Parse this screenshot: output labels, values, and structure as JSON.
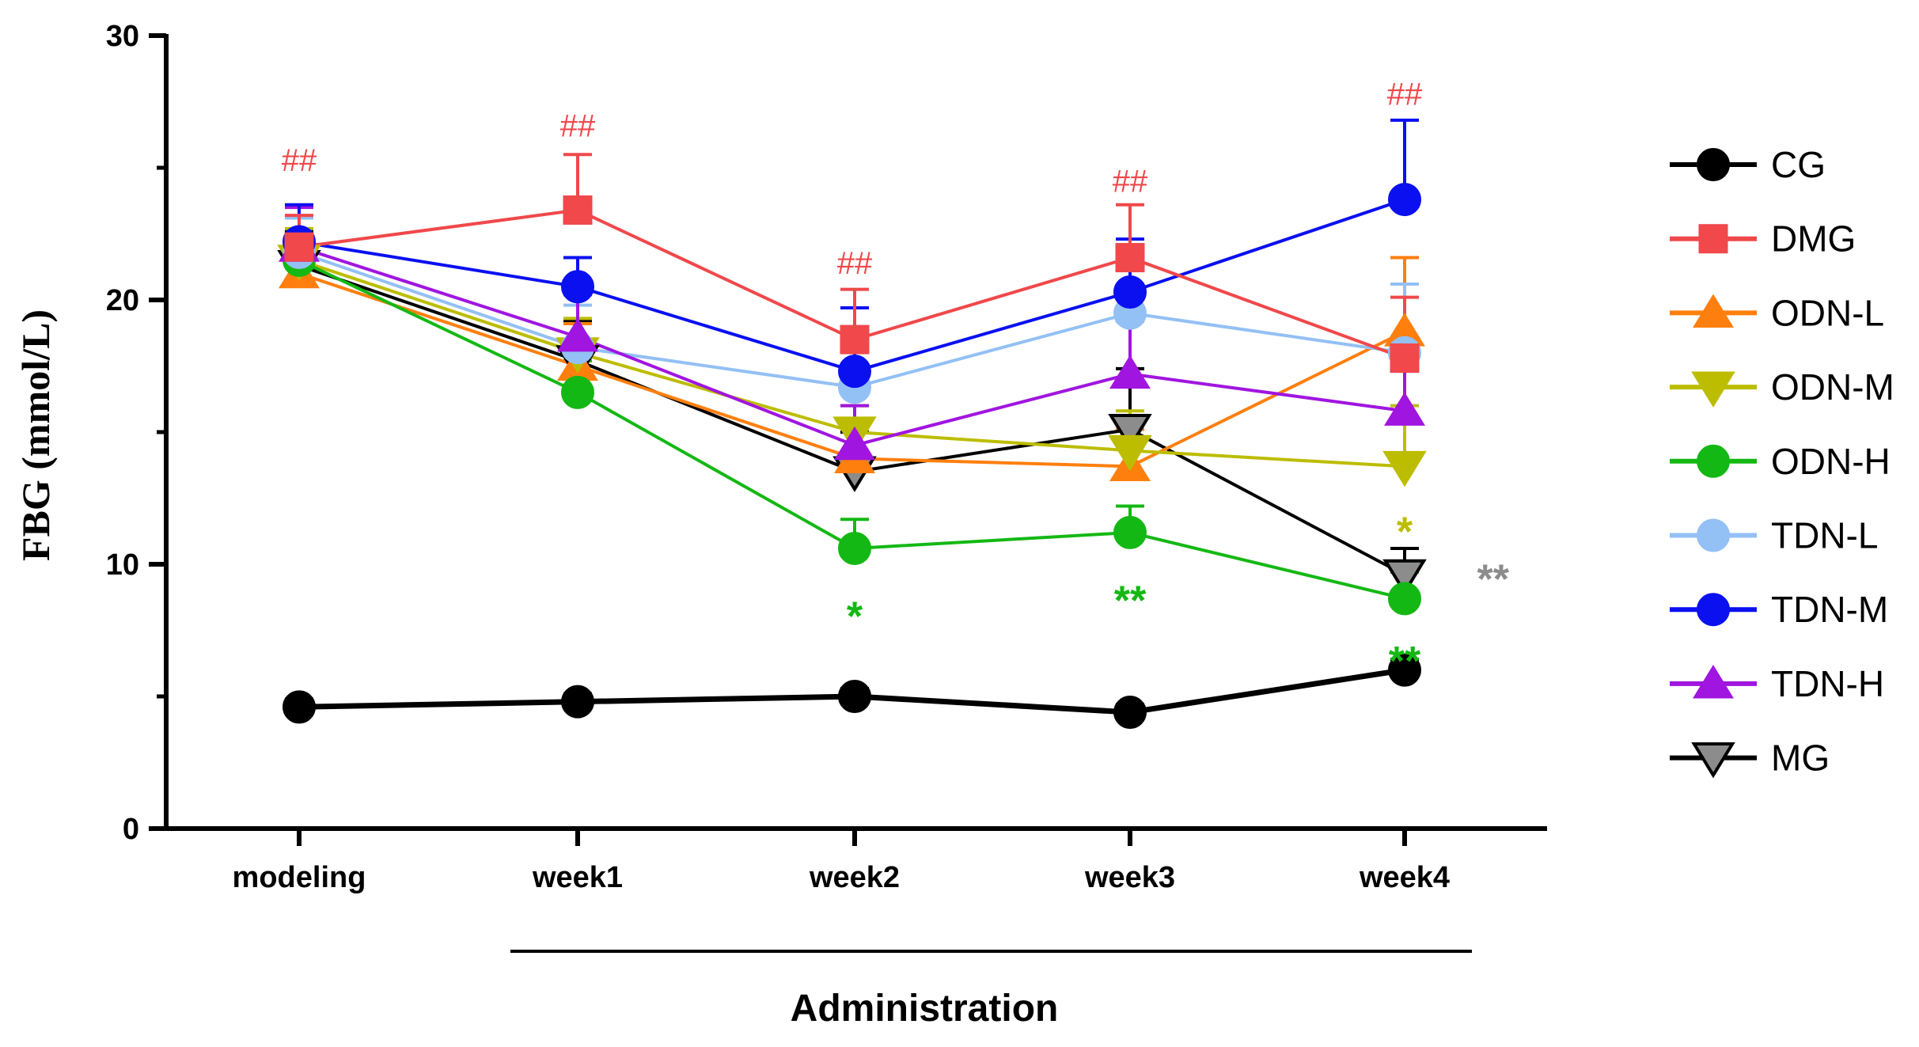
{
  "chart_data": {
    "type": "line",
    "title": "",
    "xlabel": "Administration",
    "ylabel": "FBG (mmol/L)",
    "ylim": [
      0,
      30
    ],
    "yticks": [
      "0",
      "10",
      "20",
      "30"
    ],
    "categories": [
      "modeling",
      "week1",
      "week2",
      "week3",
      "week4"
    ],
    "administration_span": [
      "week1",
      "week4"
    ],
    "legend_position": "right",
    "series": [
      {
        "name": "CG",
        "color": "#000000",
        "marker": "circle",
        "values": [
          4.6,
          4.8,
          5.0,
          4.4,
          6.0
        ],
        "errors": [
          0.3,
          0.3,
          0.3,
          0.3,
          0.4
        ]
      },
      {
        "name": "DMG",
        "color": "#f0484b",
        "marker": "square",
        "values": [
          22.0,
          23.4,
          18.5,
          21.6,
          17.8
        ],
        "errors": [
          1.2,
          2.1,
          1.9,
          2.0,
          2.3
        ]
      },
      {
        "name": "ODN-L",
        "color": "#ff7f0e",
        "marker": "triangle-up",
        "values": [
          21.0,
          17.5,
          14.0,
          13.7,
          18.8
        ],
        "errors": [
          1.4,
          1.6,
          1.4,
          1.4,
          2.8
        ]
      },
      {
        "name": "ODN-M",
        "color": "#bcbd00",
        "marker": "triangle-down",
        "values": [
          21.5,
          18.0,
          15.0,
          14.3,
          13.7
        ],
        "errors": [
          1.2,
          1.3,
          1.0,
          1.5,
          2.3
        ]
      },
      {
        "name": "ODN-H",
        "color": "#14b814",
        "marker": "circle",
        "values": [
          21.5,
          16.5,
          10.6,
          11.2,
          8.7
        ],
        "errors": [
          1.0,
          1.2,
          1.1,
          1.0,
          1.0
        ]
      },
      {
        "name": "TDN-L",
        "color": "#93c0f5",
        "marker": "circle",
        "values": [
          21.8,
          18.2,
          16.7,
          19.5,
          18.0
        ],
        "errors": [
          1.3,
          1.6,
          1.5,
          2.0,
          2.6
        ]
      },
      {
        "name": "TDN-M",
        "color": "#0a10f0",
        "marker": "circle",
        "values": [
          22.2,
          20.5,
          17.3,
          20.3,
          23.8
        ],
        "errors": [
          1.4,
          1.1,
          2.4,
          2.0,
          3.0
        ]
      },
      {
        "name": "TDN-H",
        "color": "#a015e0",
        "marker": "triangle-up",
        "values": [
          22.0,
          18.6,
          14.5,
          17.2,
          15.8
        ],
        "errors": [
          1.5,
          1.6,
          1.5,
          2.0,
          1.5
        ]
      },
      {
        "name": "MG",
        "color": "#000000",
        "fill": "#8c8c8c",
        "marker": "triangle-down",
        "values": [
          21.3,
          17.7,
          13.5,
          15.1,
          9.6
        ],
        "errors": [
          1.3,
          1.5,
          1.5,
          2.3,
          1.0
        ]
      }
    ],
    "annotations": [
      {
        "text": "##",
        "category": "modeling",
        "y": 25.3,
        "color": "#f0484b"
      },
      {
        "text": "##",
        "category": "week1",
        "y": 26.6,
        "color": "#f0484b"
      },
      {
        "text": "##",
        "category": "week2",
        "y": 21.4,
        "color": "#f0484b"
      },
      {
        "text": "##",
        "category": "week3",
        "y": 24.5,
        "color": "#f0484b"
      },
      {
        "text": "##",
        "category": "week4",
        "y": 27.8,
        "color": "#f0484b"
      },
      {
        "text": "*",
        "category": "week2",
        "y": 8.4,
        "color": "#14b814"
      },
      {
        "text": "**",
        "category": "week3",
        "y": 9.0,
        "color": "#14b814"
      },
      {
        "text": "**",
        "category": "week4",
        "y": 6.7,
        "color": "#14b814"
      },
      {
        "text": "*",
        "category": "week4",
        "y": 11.6,
        "color": "#bcbd00"
      },
      {
        "text": "**",
        "category": "week4",
        "y": 9.8,
        "color": "#8c8c8c",
        "dx": 0.26
      }
    ]
  }
}
